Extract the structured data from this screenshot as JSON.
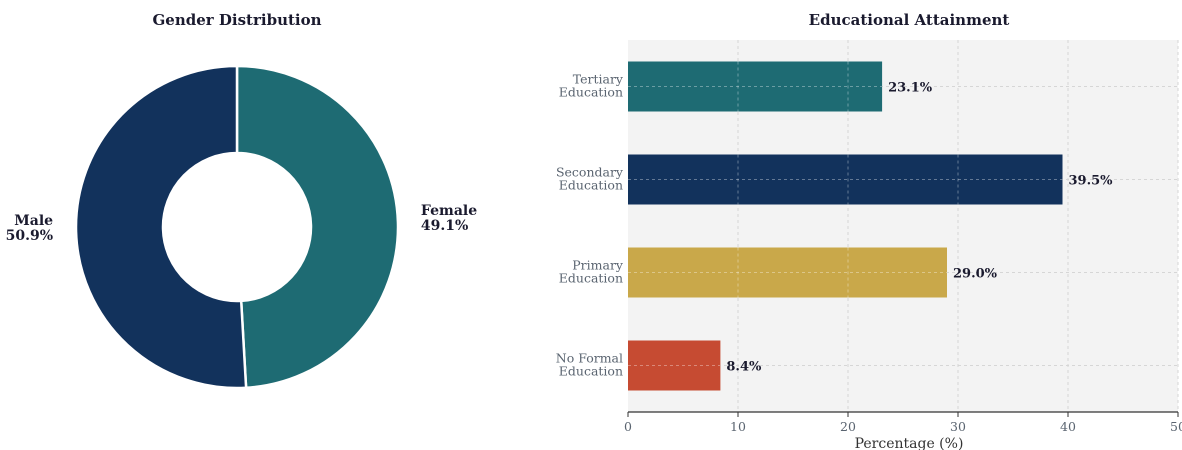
{
  "colors": {
    "navy": "#12325c",
    "teal": "#1e6b73",
    "gold": "#c9a84a",
    "red": "#c64b32",
    "plot_bg": "#f3f3f3"
  },
  "chart_data": [
    {
      "type": "pie",
      "style": "donut",
      "title": "Gender Distribution",
      "slices": [
        {
          "label": "Female",
          "value": 49.1,
          "display": "49.1%",
          "color": "#1e6b73"
        },
        {
          "label": "Male",
          "value": 50.9,
          "display": "50.9%",
          "color": "#12325c"
        }
      ]
    },
    {
      "type": "bar",
      "orientation": "horizontal",
      "title": "Educational Attainment",
      "xlabel": "Percentage (%)",
      "ylabel": "",
      "xlim": [
        0,
        50
      ],
      "xticks": [
        0,
        10,
        20,
        30,
        40,
        50
      ],
      "grid": true,
      "categories": [
        {
          "line1": "Tertiary",
          "line2": "Education",
          "value": 23.1,
          "display": "23.1%",
          "color": "#1e6b73"
        },
        {
          "line1": "Secondary",
          "line2": "Education",
          "value": 39.5,
          "display": "39.5%",
          "color": "#12325c"
        },
        {
          "line1": "Primary",
          "line2": "Education",
          "value": 29.0,
          "display": "29.0%",
          "color": "#c9a84a"
        },
        {
          "line1": "No Formal",
          "line2": "Education",
          "value": 8.4,
          "display": "8.4%",
          "color": "#c64b32"
        }
      ]
    }
  ]
}
